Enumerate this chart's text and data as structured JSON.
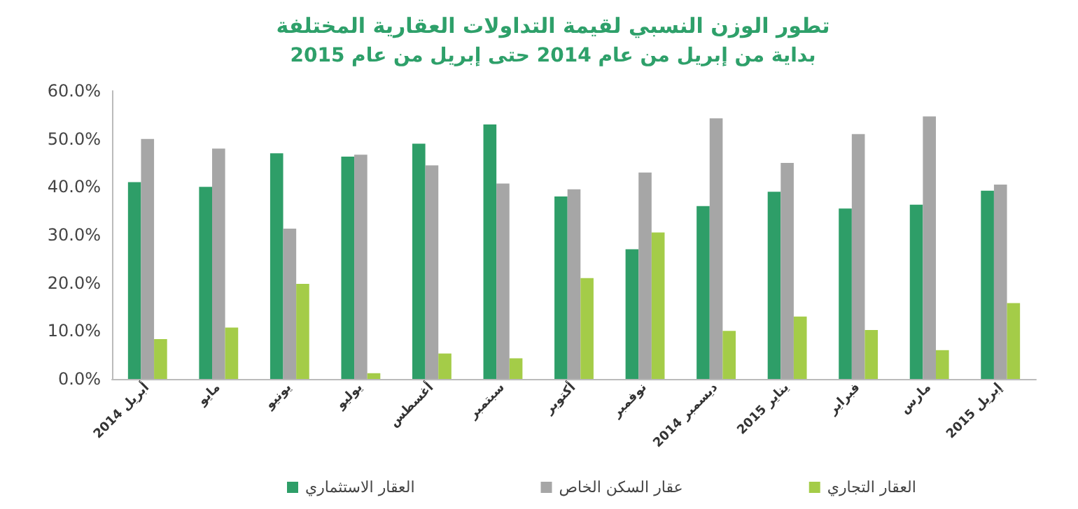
{
  "chart_data": {
    "type": "bar",
    "title": "تطور الوزن النسبي لقيمة التداولات العقارية المختلفة",
    "subtitle": "بداية من إبريل من عام 2014 حتى إبريل من عام 2015",
    "categories": [
      "أبريل 2014",
      "مايو",
      "يونيو",
      "يوليو",
      "أغسطس",
      "سبتمبر",
      "أكتوبر",
      "نوفمبر",
      "ديسمبر 2014",
      "يناير 2015",
      "فبراير",
      "مارس",
      "إبريل 2015"
    ],
    "series": [
      {
        "name": "العقار الاستثماري",
        "color": "#2e9e68",
        "values": [
          41.0,
          40.0,
          47.0,
          46.3,
          49.0,
          53.0,
          38.0,
          27.0,
          36.0,
          39.0,
          35.5,
          36.3,
          39.2
        ]
      },
      {
        "name": "عقار السكن الخاص",
        "color": "#a6a6a6",
        "values": [
          50.0,
          48.0,
          31.3,
          46.7,
          44.5,
          40.7,
          39.5,
          43.0,
          54.3,
          45.0,
          51.0,
          54.7,
          40.5
        ]
      },
      {
        "name": "العقار التجاري",
        "color": "#a4cc48",
        "values": [
          8.3,
          10.7,
          19.8,
          1.2,
          5.3,
          4.3,
          21.0,
          30.5,
          10.0,
          13.0,
          10.2,
          6.0,
          15.8
        ]
      }
    ],
    "ylim": [
      0,
      60
    ],
    "yticks": [
      {
        "value": 0,
        "label": "0.0%"
      },
      {
        "value": 10,
        "label": "10.0%"
      },
      {
        "value": 20,
        "label": "20.0%"
      },
      {
        "value": 30,
        "label": "30.0%"
      },
      {
        "value": 40,
        "label": "40.0%"
      },
      {
        "value": 50,
        "label": "50.0%"
      },
      {
        "value": 60,
        "label": "60.0%"
      }
    ],
    "grid": false,
    "legend": "bottom"
  }
}
